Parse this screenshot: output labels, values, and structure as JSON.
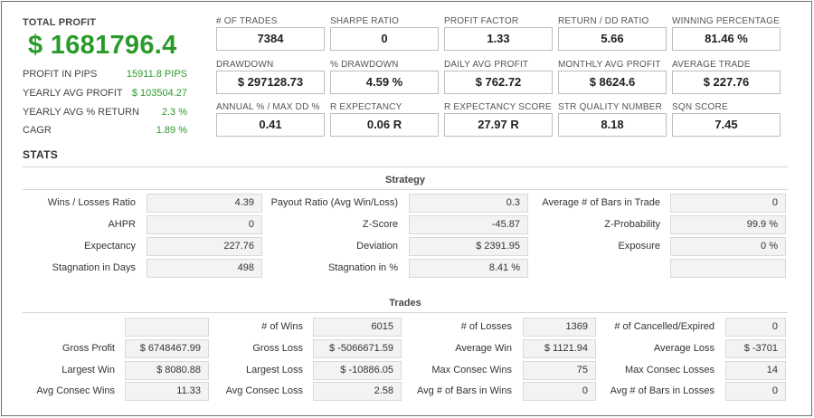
{
  "summary": {
    "total_profit_label": "TOTAL PROFIT",
    "total_profit_value": "$ 1681796.4",
    "rows": [
      {
        "label": "PROFIT IN PIPS",
        "value": "15911.8 PIPS"
      },
      {
        "label": "YEARLY AVG PROFIT",
        "value": "$ 103504.27"
      },
      {
        "label": "YEARLY AVG % RETURN",
        "value": "2.3 %"
      },
      {
        "label": "CAGR",
        "value": "1.89 %"
      }
    ]
  },
  "metrics": [
    {
      "label": "# OF TRADES",
      "value": "7384"
    },
    {
      "label": "SHARPE RATIO",
      "value": "0"
    },
    {
      "label": "PROFIT FACTOR",
      "value": "1.33"
    },
    {
      "label": "RETURN / DD RATIO",
      "value": "5.66"
    },
    {
      "label": "WINNING PERCENTAGE",
      "value": "81.46 %"
    },
    {
      "label": "DRAWDOWN",
      "value": "$ 297128.73"
    },
    {
      "label": "% DRAWDOWN",
      "value": "4.59 %"
    },
    {
      "label": "DAILY AVG PROFIT",
      "value": "$ 762.72"
    },
    {
      "label": "MONTHLY AVG PROFIT",
      "value": "$ 8624.6"
    },
    {
      "label": "AVERAGE TRADE",
      "value": "$ 227.76"
    },
    {
      "label": "ANNUAL % / MAX DD %",
      "value": "0.41"
    },
    {
      "label": "R EXPECTANCY",
      "value": "0.06 R"
    },
    {
      "label": "R EXPECTANCY SCORE",
      "value": "27.97 R"
    },
    {
      "label": "STR QUALITY NUMBER",
      "value": "8.18"
    },
    {
      "label": "SQN SCORE",
      "value": "7.45"
    }
  ],
  "stats_title": "STATS",
  "strategy": {
    "title": "Strategy",
    "rows": [
      [
        {
          "label": "Wins / Losses Ratio",
          "value": "4.39"
        },
        {
          "label": "Payout Ratio (Avg Win/Loss)",
          "value": "0.3"
        },
        {
          "label": "Average # of Bars in Trade",
          "value": "0"
        }
      ],
      [
        {
          "label": "AHPR",
          "value": "0"
        },
        {
          "label": "Z-Score",
          "value": "-45.87"
        },
        {
          "label": "Z-Probability",
          "value": "99.9 %"
        }
      ],
      [
        {
          "label": "Expectancy",
          "value": "227.76"
        },
        {
          "label": "Deviation",
          "value": "$ 2391.95"
        },
        {
          "label": "Exposure",
          "value": "0 %"
        }
      ],
      [
        {
          "label": "Stagnation in Days",
          "value": "498"
        },
        {
          "label": "Stagnation in %",
          "value": "8.41 %"
        },
        {
          "label": "",
          "value": ""
        }
      ]
    ]
  },
  "trades": {
    "title": "Trades",
    "rows": [
      [
        {
          "label": "",
          "value": ""
        },
        {
          "label": "# of Wins",
          "value": "6015"
        },
        {
          "label": "# of Losses",
          "value": "1369"
        },
        {
          "label": "# of Cancelled/Expired",
          "value": "0"
        }
      ],
      [
        {
          "label": "Gross Profit",
          "value": "$ 6748467.99"
        },
        {
          "label": "Gross Loss",
          "value": "$ -5066671.59"
        },
        {
          "label": "Average Win",
          "value": "$ 1121.94"
        },
        {
          "label": "Average Loss",
          "value": "$ -3701"
        }
      ],
      [
        {
          "label": "Largest Win",
          "value": "$ 8080.88"
        },
        {
          "label": "Largest Loss",
          "value": "$ -10886.05"
        },
        {
          "label": "Max Consec Wins",
          "value": "75"
        },
        {
          "label": "Max Consec Losses",
          "value": "14"
        }
      ],
      [
        {
          "label": "Avg Consec Wins",
          "value": "11.33"
        },
        {
          "label": "Avg Consec Loss",
          "value": "2.58"
        },
        {
          "label": "Avg # of Bars in Wins",
          "value": "0"
        },
        {
          "label": "Avg # of Bars in Losses",
          "value": "0"
        }
      ]
    ]
  },
  "colors": {
    "accent_green": "#2a9b2a"
  }
}
